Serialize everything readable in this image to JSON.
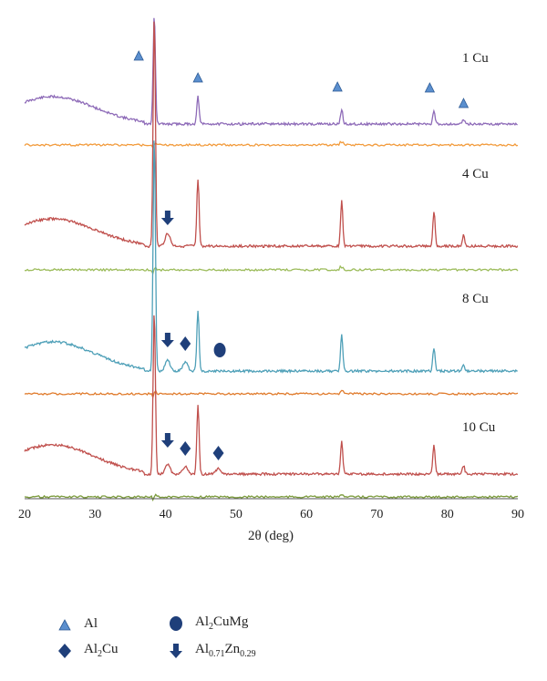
{
  "chart_data": {
    "type": "line",
    "xlabel": "2θ (deg)",
    "xlim": [
      20,
      90
    ],
    "xticks": [
      20,
      30,
      40,
      50,
      60,
      70,
      80,
      90
    ],
    "grid": false,
    "legend_position": "bottom",
    "samples": [
      {
        "label": "1 Cu",
        "markers": [
          {
            "type": "Al",
            "x": 36.2
          },
          {
            "type": "Al",
            "x": 44.6
          },
          {
            "type": "Al",
            "x": 64.4
          },
          {
            "type": "Al",
            "x": 77.5
          },
          {
            "type": "Al",
            "x": 82.3
          }
        ]
      },
      {
        "label": "4 Cu",
        "markers": [
          {
            "type": "Al0.71Zn0.29",
            "x": 40.3
          }
        ]
      },
      {
        "label": "8 Cu",
        "markers": [
          {
            "type": "Al0.71Zn0.29",
            "x": 40.3
          },
          {
            "type": "Al2Cu",
            "x": 42.8
          },
          {
            "type": "Al2CuMg",
            "x": 47.7
          }
        ]
      },
      {
        "label": "10 Cu",
        "markers": [
          {
            "type": "Al0.71Zn0.29",
            "x": 40.3
          },
          {
            "type": "Al2Cu",
            "x": 42.8
          },
          {
            "type": "Al2Cu",
            "x": 47.5
          }
        ]
      }
    ],
    "peaks_2theta": [
      38.4,
      44.6,
      65.0,
      78.1,
      82.3
    ],
    "legend": [
      {
        "symbol": "Al",
        "label": "Al"
      },
      {
        "symbol": "Al2CuMg",
        "label_main": "Al",
        "label_sub1": "2",
        "label_rest": "CuMg"
      },
      {
        "symbol": "Al2Cu",
        "label_main": "Al",
        "label_sub1": "2",
        "label_rest": "Cu"
      },
      {
        "symbol": "Al0.71Zn0.29",
        "label_main": "Al",
        "label_sub1": "0.71",
        "label_mid": "Zn",
        "label_sub2": "0.29"
      }
    ],
    "colors": {
      "triangle": "#5b8fce",
      "marker_dark": "#1f3f7a",
      "trace_1cu": "#8e6bb8",
      "diff_1cu": "#f29b3c",
      "trace_4cu": "#c0504d",
      "diff_4cu": "#9bbb59",
      "trace_8cu": "#4fa0b8",
      "diff_8cu": "#e07b2c",
      "trace_10cu": "#c0504d",
      "diff_10cu": "#7a9a3a"
    }
  }
}
